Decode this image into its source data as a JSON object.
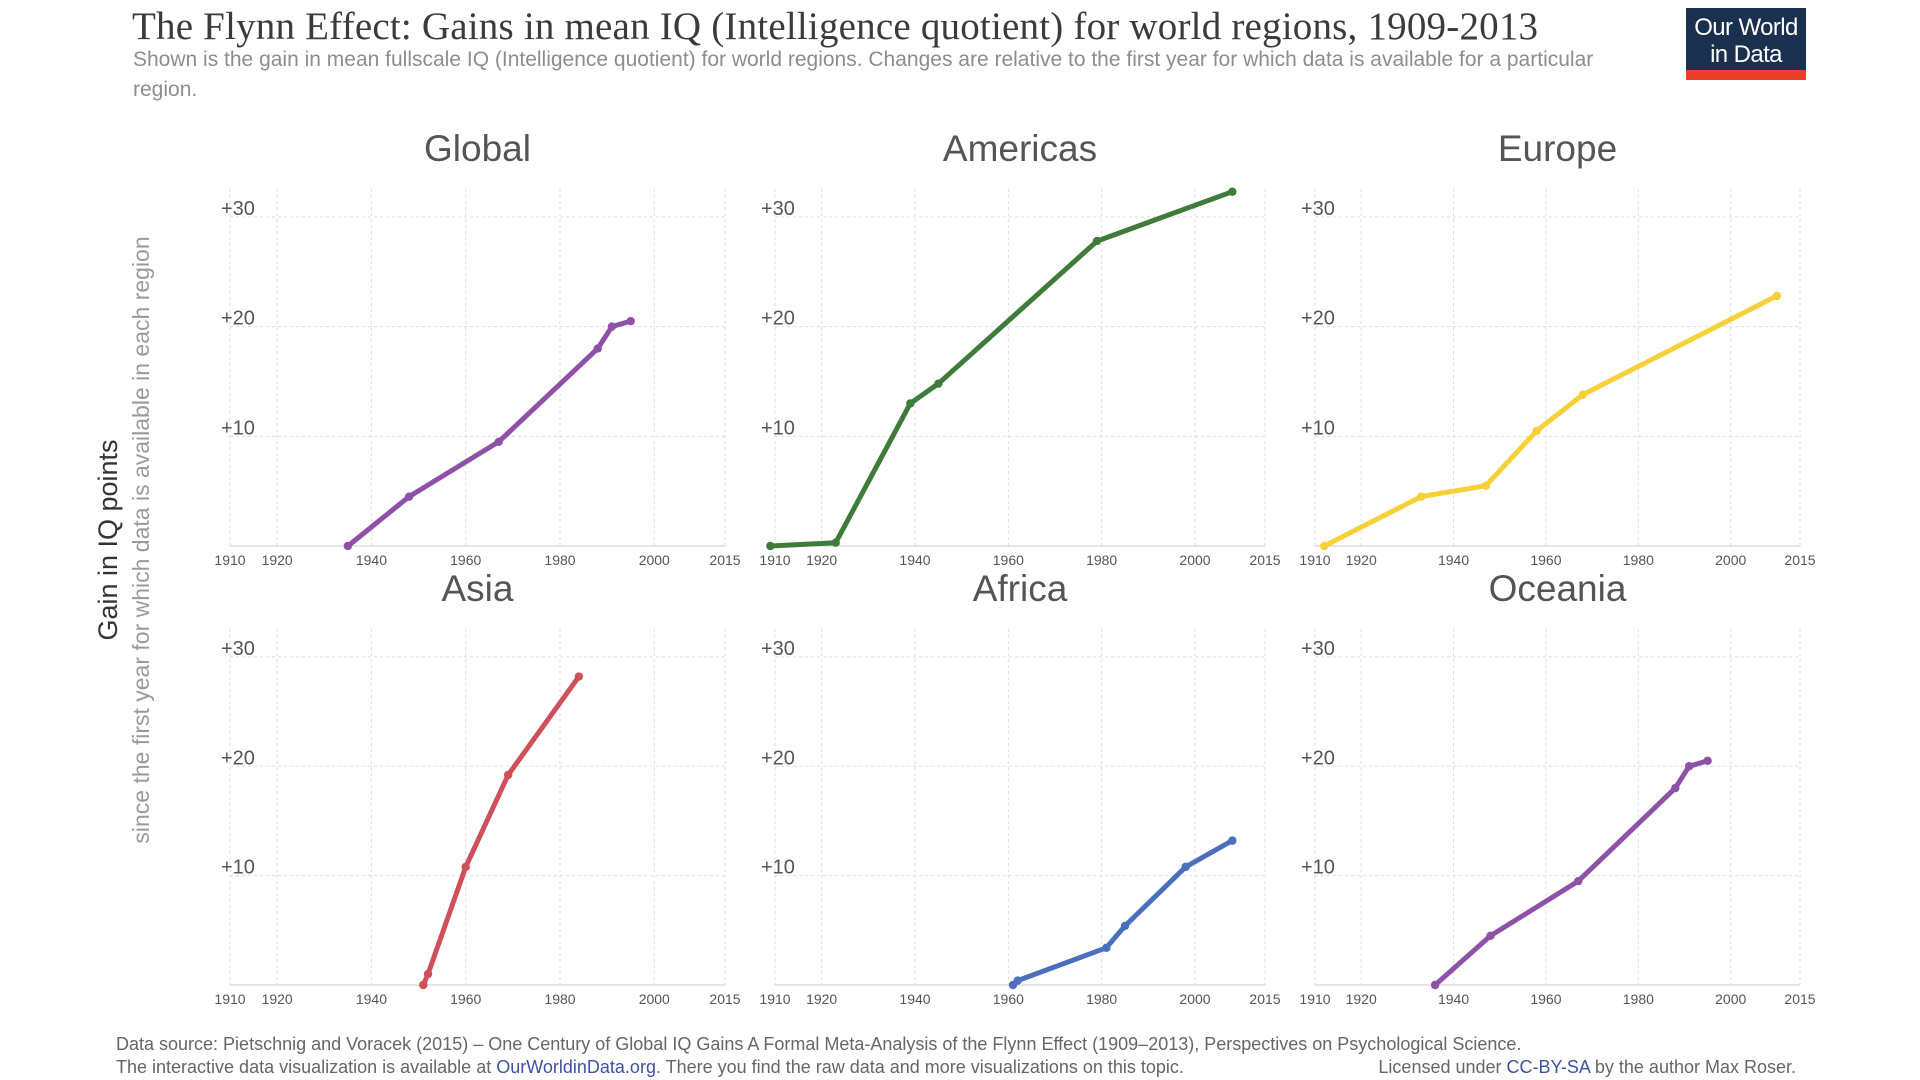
{
  "header": {
    "title": "The Flynn Effect: Gains in mean IQ (Intelligence quotient) for world regions, 1909-2013",
    "subtitle": "Shown is the gain in mean fullscale IQ (Intelligence quotient) for world regions. Changes are relative to the first year for which data is available for a particular region.",
    "logo_line1": "Our World",
    "logo_line2": "in Data"
  },
  "axis": {
    "ylabel_main": "Gain in IQ points",
    "ylabel_sub": "since the first year for which data is available in each region"
  },
  "colors": {
    "grid": "#dddddd",
    "tick_text": "#555555",
    "panel_title": "#555555",
    "purple": "#8e51a8",
    "green": "#3f7c3c",
    "yellow": "#f7d13a",
    "red": "#cf4f5b",
    "blue": "#4a6fbe"
  },
  "chart_data": [
    {
      "type": "line",
      "title": "Global",
      "color": "#8e51a8",
      "x": [
        1935,
        1948,
        1967,
        1988,
        1991,
        1995
      ],
      "y": [
        0,
        4.5,
        9.5,
        18,
        20,
        20.5
      ],
      "xlim": [
        1910,
        2015
      ],
      "ylim": [
        0,
        32
      ],
      "xticks": [
        "1910",
        "1920",
        "1940",
        "1960",
        "1980",
        "2000",
        "2015"
      ],
      "yticks": [
        "+10",
        "+20",
        "+30"
      ],
      "grid": true
    },
    {
      "type": "line",
      "title": "Americas",
      "color": "#3f7c3c",
      "x": [
        1909,
        1923,
        1939,
        1945,
        1979,
        2008
      ],
      "y": [
        0,
        0.3,
        13,
        14.8,
        27.8,
        32.3
      ],
      "xlim": [
        1910,
        2015
      ],
      "ylim": [
        0,
        32
      ],
      "xticks": [
        "1910",
        "1920",
        "1940",
        "1960",
        "1980",
        "2000",
        "2015"
      ],
      "yticks": [
        "+10",
        "+20",
        "+30"
      ],
      "grid": true
    },
    {
      "type": "line",
      "title": "Europe",
      "color": "#f7d13a",
      "x": [
        1912,
        1933,
        1947,
        1958,
        1968,
        2010
      ],
      "y": [
        0,
        4.5,
        5.5,
        10.5,
        13.8,
        22.8
      ],
      "xlim": [
        1910,
        2015
      ],
      "ylim": [
        0,
        32
      ],
      "xticks": [
        "1910",
        "1920",
        "1940",
        "1960",
        "1980",
        "2000",
        "2015"
      ],
      "yticks": [
        "+10",
        "+20",
        "+30"
      ],
      "grid": true
    },
    {
      "type": "line",
      "title": "Asia",
      "color": "#cf4f5b",
      "x": [
        1951,
        1952,
        1960,
        1969,
        1984
      ],
      "y": [
        0,
        1,
        10.8,
        19.2,
        28.2
      ],
      "xlim": [
        1910,
        2015
      ],
      "ylim": [
        0,
        32
      ],
      "xticks": [
        "1910",
        "1920",
        "1940",
        "1960",
        "1980",
        "2000",
        "2015"
      ],
      "yticks": [
        "+10",
        "+20",
        "+30"
      ],
      "grid": true
    },
    {
      "type": "line",
      "title": "Africa",
      "color": "#4a6fbe",
      "x": [
        1961,
        1962,
        1981,
        1985,
        1998,
        2008
      ],
      "y": [
        0,
        0.4,
        3.4,
        5.4,
        10.8,
        13.2
      ],
      "xlim": [
        1910,
        2015
      ],
      "ylim": [
        0,
        32
      ],
      "xticks": [
        "1910",
        "1920",
        "1940",
        "1960",
        "1980",
        "2000",
        "2015"
      ],
      "yticks": [
        "+10",
        "+20",
        "+30"
      ],
      "grid": true
    },
    {
      "type": "line",
      "title": "Oceania",
      "color": "#8e51a8",
      "x": [
        1936,
        1948,
        1967,
        1988,
        1991,
        1995
      ],
      "y": [
        0,
        4.5,
        9.5,
        18,
        20,
        20.5
      ],
      "xlim": [
        1910,
        2015
      ],
      "ylim": [
        0,
        32
      ],
      "xticks": [
        "1910",
        "1920",
        "1940",
        "1960",
        "1980",
        "2000",
        "2015"
      ],
      "yticks": [
        "+10",
        "+20",
        "+30"
      ],
      "grid": true
    }
  ],
  "footer": {
    "source": "Data source: Pietschnig and Voracek (2015) – One Century of Global IQ Gains A Formal Meta-Analysis of the Flynn Effect (1909–2013), Perspectives on Psychological Science.",
    "interactive_prefix": "The interactive data visualization is available at ",
    "interactive_link": "OurWorldinData.org",
    "interactive_suffix": ". There you find the raw data and more visualizations on this topic.",
    "license_prefix": "Licensed under ",
    "license_link": "CC-BY-SA",
    "license_suffix": " by the author Max Roser."
  }
}
